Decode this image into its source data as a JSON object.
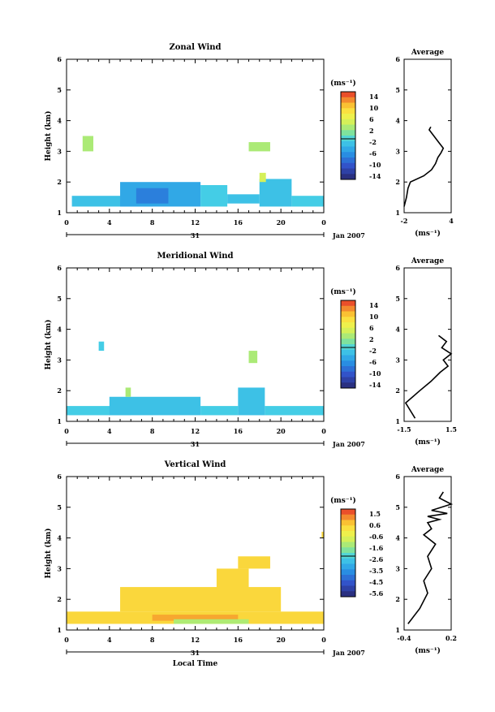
{
  "chart_data": [
    {
      "type": "heatmap",
      "title": "Zonal Wind",
      "ylabel": "Height (km)",
      "xlabel": "",
      "xlim": [
        0,
        24
      ],
      "ylim": [
        1,
        6
      ],
      "xticks": [
        "0",
        "4",
        "8",
        "12",
        "16",
        "20",
        "0"
      ],
      "yticks": [
        "1",
        "2",
        "3",
        "4",
        "5",
        "6"
      ],
      "date_label": "31",
      "month_label": "Jan 2007",
      "colorbar": {
        "unit": "(ms⁻¹)",
        "ticks": [
          "14",
          "10",
          "6",
          "2",
          "-2",
          "-6",
          "-10",
          "-14"
        ],
        "min": -16,
        "max": 16
      },
      "cells": [
        {
          "x": [
            0.5,
            8
          ],
          "y": [
            1.2,
            1.55
          ],
          "v": -3
        },
        {
          "x": [
            5,
            12.5
          ],
          "y": [
            1.2,
            2.0
          ],
          "v": -5
        },
        {
          "x": [
            6.5,
            9.5
          ],
          "y": [
            1.3,
            1.8
          ],
          "v": -8
        },
        {
          "x": [
            12.5,
            15
          ],
          "y": [
            1.2,
            1.9
          ],
          "v": -2
        },
        {
          "x": [
            15,
            18
          ],
          "y": [
            1.3,
            1.6
          ],
          "v": -3
        },
        {
          "x": [
            18,
            21
          ],
          "y": [
            1.2,
            2.1
          ],
          "v": -3
        },
        {
          "x": [
            21,
            24
          ],
          "y": [
            1.2,
            1.55
          ],
          "v": -2
        },
        {
          "x": [
            1.5,
            2.5
          ],
          "y": [
            3.0,
            3.5
          ],
          "v": 3
        },
        {
          "x": [
            17,
            19
          ],
          "y": [
            3.0,
            3.3
          ],
          "v": 3
        },
        {
          "x": [
            18,
            18.6
          ],
          "y": [
            2.0,
            2.3
          ],
          "v": 5
        }
      ],
      "average": {
        "title": "Average",
        "xlabel": "(ms⁻¹)",
        "xlim": [
          -2,
          4
        ],
        "ylim": [
          1,
          6
        ],
        "xticks": [
          "-2",
          "4"
        ],
        "yticks": [
          "1",
          "2",
          "3",
          "4",
          "5",
          "6"
        ],
        "x": [
          -2,
          -1.7,
          -1.5,
          -1.2,
          0.5,
          1.5,
          2.0,
          2.3,
          2.7,
          3.0,
          2.4,
          1.8,
          1.2,
          1.4
        ],
        "y": [
          1.2,
          1.5,
          1.8,
          2.0,
          2.2,
          2.4,
          2.6,
          2.8,
          2.95,
          3.1,
          3.3,
          3.5,
          3.7,
          3.8
        ]
      }
    },
    {
      "type": "heatmap",
      "title": "Meridional Wind",
      "ylabel": "Height (km)",
      "xlabel": "",
      "xlim": [
        0,
        24
      ],
      "ylim": [
        1,
        6
      ],
      "xticks": [
        "0",
        "4",
        "8",
        "12",
        "16",
        "20",
        "0"
      ],
      "yticks": [
        "1",
        "2",
        "3",
        "4",
        "5",
        "6"
      ],
      "date_label": "31",
      "month_label": "Jan 2007",
      "colorbar": {
        "unit": "(ms⁻¹)",
        "ticks": [
          "14",
          "10",
          "6",
          "2",
          "-2",
          "-6",
          "-10",
          "-14"
        ],
        "min": -16,
        "max": 16
      },
      "cells": [
        {
          "x": [
            0,
            6
          ],
          "y": [
            1.2,
            1.5
          ],
          "v": -2
        },
        {
          "x": [
            4,
            12.5
          ],
          "y": [
            1.2,
            1.8
          ],
          "v": -3
        },
        {
          "x": [
            12.5,
            16
          ],
          "y": [
            1.2,
            1.5
          ],
          "v": -2
        },
        {
          "x": [
            16,
            18.5
          ],
          "y": [
            1.2,
            2.1
          ],
          "v": -3
        },
        {
          "x": [
            18.5,
            24
          ],
          "y": [
            1.2,
            1.5
          ],
          "v": -2
        },
        {
          "x": [
            5.5,
            6
          ],
          "y": [
            1.8,
            2.1
          ],
          "v": 3
        },
        {
          "x": [
            3,
            3.5
          ],
          "y": [
            3.3,
            3.6
          ],
          "v": -2
        },
        {
          "x": [
            17,
            17.8
          ],
          "y": [
            2.9,
            3.3
          ],
          "v": 3
        }
      ],
      "average": {
        "title": "Average",
        "xlabel": "(ms⁻¹)",
        "xlim": [
          -1.5,
          1.5
        ],
        "ylim": [
          1,
          6
        ],
        "xticks": [
          "-1.5",
          "1.5"
        ],
        "yticks": [
          "1",
          "2",
          "3",
          "4",
          "5",
          "6"
        ],
        "x": [
          -0.8,
          -1.4,
          -0.5,
          0.2,
          0.8,
          1.3,
          1.0,
          1.5,
          0.9,
          1.2,
          0.7
        ],
        "y": [
          1.1,
          1.6,
          2.0,
          2.3,
          2.6,
          2.8,
          3.0,
          3.2,
          3.4,
          3.6,
          3.8
        ]
      }
    },
    {
      "type": "heatmap",
      "title": "Vertical Wind",
      "ylabel": "Height (km)",
      "xlabel": "Local Time",
      "xlim": [
        0,
        24
      ],
      "ylim": [
        1,
        6
      ],
      "xticks": [
        "0",
        "4",
        "8",
        "12",
        "16",
        "20",
        "0"
      ],
      "yticks": [
        "1",
        "2",
        "3",
        "4",
        "5",
        "6"
      ],
      "date_label": "31",
      "month_label": "Jan 2007",
      "colorbar": {
        "unit": "(ms⁻¹)",
        "ticks": [
          "1.5",
          "0.6",
          "-0.6",
          "-1.6",
          "-2.6",
          "-3.5",
          "-4.5",
          "-5.6"
        ],
        "min": -6,
        "max": 2
      },
      "cells": [
        {
          "x": [
            0,
            24
          ],
          "y": [
            1.2,
            1.6
          ],
          "v": 0.4
        },
        {
          "x": [
            5,
            20
          ],
          "y": [
            1.6,
            2.4
          ],
          "v": 0.4
        },
        {
          "x": [
            8,
            16
          ],
          "y": [
            1.3,
            1.5
          ],
          "v": 1.0
        },
        {
          "x": [
            16,
            19
          ],
          "y": [
            3.0,
            3.4
          ],
          "v": 0.4
        },
        {
          "x": [
            14,
            17
          ],
          "y": [
            2.3,
            3.0
          ],
          "v": 0.4
        },
        {
          "x": [
            10,
            17
          ],
          "y": [
            1.2,
            1.35
          ],
          "v": -1.2
        },
        {
          "x": [
            23.8,
            24
          ],
          "y": [
            4.0,
            4.2
          ],
          "v": 0.4
        }
      ],
      "average": {
        "title": "Average",
        "xlabel": "(ms⁻¹)",
        "xlim": [
          -0.4,
          0.2
        ],
        "ylim": [
          1,
          6
        ],
        "xticks": [
          "-0.4",
          "0.2"
        ],
        "yticks": [
          "1",
          "2",
          "3",
          "4",
          "5",
          "6"
        ],
        "x": [
          -0.35,
          -0.2,
          -0.1,
          -0.15,
          -0.05,
          -0.1,
          0.0,
          -0.15,
          -0.05,
          -0.1,
          0.05,
          -0.1,
          0.15,
          -0.05,
          0.2,
          0.05,
          0.1
        ],
        "y": [
          1.2,
          1.7,
          2.2,
          2.6,
          3.0,
          3.4,
          3.8,
          4.1,
          4.3,
          4.5,
          4.6,
          4.7,
          4.8,
          4.9,
          5.1,
          5.3,
          5.5
        ]
      }
    }
  ]
}
